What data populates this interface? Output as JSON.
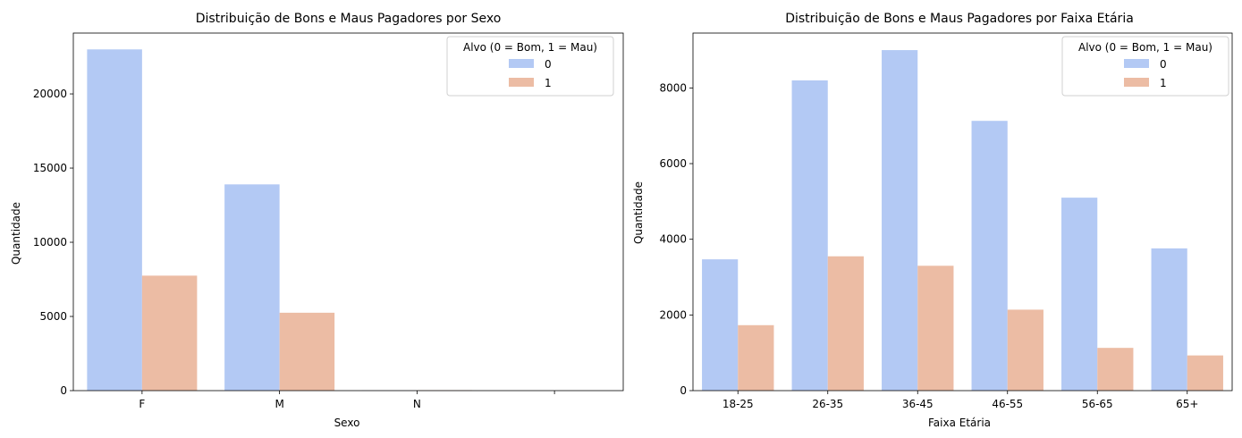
{
  "colors": {
    "series0": "#b3c9f4",
    "series1": "#ecbca4"
  },
  "chart_data": [
    {
      "type": "bar",
      "title": "Distribuição de Bons e Maus Pagadores por Sexo",
      "xlabel": "Sexo",
      "ylabel": "Quantidade",
      "categories": [
        "F",
        "M",
        "N",
        ""
      ],
      "series": [
        {
          "name": "0",
          "values": [
            23000,
            13900,
            15,
            0
          ]
        },
        {
          "name": "1",
          "values": [
            7750,
            5250,
            30,
            0
          ]
        }
      ],
      "ylim": [
        0,
        24100
      ],
      "yticks": [
        0,
        5000,
        10000,
        15000,
        20000
      ],
      "legend": {
        "title": "Alvo (0 = Bom, 1 = Mau)",
        "position": "top-right"
      },
      "grid": false
    },
    {
      "type": "bar",
      "title": "Distribuição de Bons e Maus Pagadores por Faixa Etária",
      "xlabel": "Faixa Etária",
      "ylabel": "Quantidade",
      "categories": [
        "18-25",
        "26-35",
        "36-45",
        "46-55",
        "56-65",
        "65+"
      ],
      "series": [
        {
          "name": "0",
          "values": [
            3470,
            8200,
            9000,
            7130,
            5100,
            3760
          ]
        },
        {
          "name": "1",
          "values": [
            1730,
            3550,
            3300,
            2140,
            1130,
            930
          ]
        }
      ],
      "ylim": [
        0,
        9450
      ],
      "yticks": [
        0,
        2000,
        4000,
        6000,
        8000
      ],
      "legend": {
        "title": "Alvo (0 = Bom, 1 = Mau)",
        "position": "top-right"
      },
      "grid": false
    }
  ]
}
